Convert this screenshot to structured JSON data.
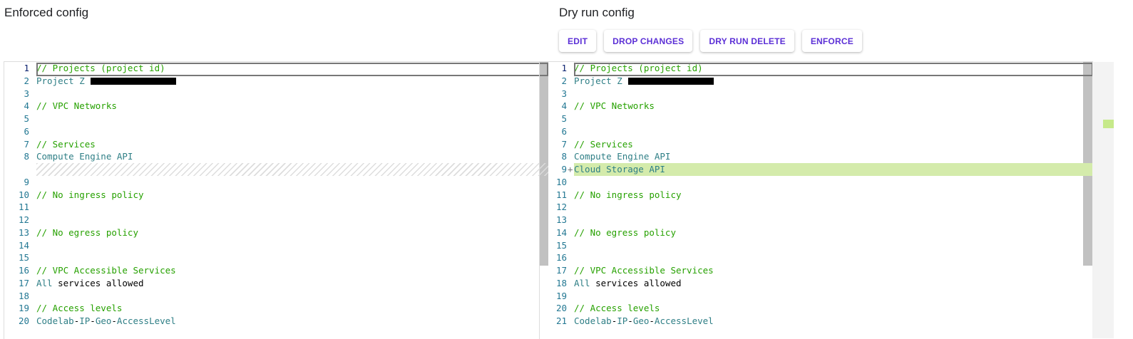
{
  "left": {
    "title": "Enforced config",
    "lines": [
      {
        "n": "1",
        "tokens": [
          {
            "t": "// Projects (project id)",
            "c": "c"
          }
        ],
        "cur": true
      },
      {
        "n": "2",
        "tokens": [
          {
            "t": "Project Z",
            "c": "t"
          }
        ],
        "redacted": true
      },
      {
        "n": "3",
        "tokens": []
      },
      {
        "n": "4",
        "tokens": [
          {
            "t": "// VPC Networks",
            "c": "c"
          }
        ]
      },
      {
        "n": "5",
        "tokens": []
      },
      {
        "n": "6",
        "tokens": []
      },
      {
        "n": "7",
        "tokens": [
          {
            "t": "// Services",
            "c": "c"
          }
        ]
      },
      {
        "n": "8",
        "tokens": [
          {
            "t": "Compute Engine API",
            "c": "t"
          }
        ]
      },
      {
        "n": "",
        "tokens": [],
        "hatch": true
      },
      {
        "n": "9",
        "tokens": []
      },
      {
        "n": "10",
        "tokens": [
          {
            "t": "// No ingress policy",
            "c": "c"
          }
        ]
      },
      {
        "n": "11",
        "tokens": []
      },
      {
        "n": "12",
        "tokens": []
      },
      {
        "n": "13",
        "tokens": [
          {
            "t": "// No egress policy",
            "c": "c"
          }
        ]
      },
      {
        "n": "14",
        "tokens": []
      },
      {
        "n": "15",
        "tokens": []
      },
      {
        "n": "16",
        "tokens": [
          {
            "t": "// VPC Accessible Services",
            "c": "c"
          }
        ]
      },
      {
        "n": "17",
        "tokens": [
          {
            "t": "All",
            "c": "t"
          },
          {
            "t": " services allowed",
            "c": "p"
          }
        ]
      },
      {
        "n": "18",
        "tokens": []
      },
      {
        "n": "19",
        "tokens": [
          {
            "t": "// Access levels",
            "c": "c"
          }
        ]
      },
      {
        "n": "20",
        "tokens": [
          {
            "t": "Codelab",
            "c": "t"
          },
          {
            "t": "-",
            "c": "p"
          },
          {
            "t": "IP",
            "c": "t"
          },
          {
            "t": "-",
            "c": "p"
          },
          {
            "t": "Geo",
            "c": "t"
          },
          {
            "t": "-",
            "c": "p"
          },
          {
            "t": "AccessLevel",
            "c": "t"
          }
        ]
      }
    ]
  },
  "right": {
    "title": "Dry run config",
    "buttons": [
      "EDIT",
      "DROP CHANGES",
      "DRY RUN DELETE",
      "ENFORCE"
    ],
    "lines": [
      {
        "n": "1",
        "tokens": [
          {
            "t": "// Projects (project id)",
            "c": "c"
          }
        ],
        "cur": true
      },
      {
        "n": "2",
        "tokens": [
          {
            "t": "Project Z",
            "c": "t"
          }
        ],
        "redacted": true
      },
      {
        "n": "3",
        "tokens": []
      },
      {
        "n": "4",
        "tokens": [
          {
            "t": "// VPC Networks",
            "c": "c"
          }
        ]
      },
      {
        "n": "5",
        "tokens": []
      },
      {
        "n": "6",
        "tokens": []
      },
      {
        "n": "7",
        "tokens": [
          {
            "t": "// Services",
            "c": "c"
          }
        ]
      },
      {
        "n": "8",
        "tokens": [
          {
            "t": "Compute Engine API",
            "c": "t"
          }
        ]
      },
      {
        "n": "9",
        "tokens": [
          {
            "t": "Cloud Storage API",
            "c": "t"
          }
        ],
        "added": true,
        "marker": "+"
      },
      {
        "n": "10",
        "tokens": []
      },
      {
        "n": "11",
        "tokens": [
          {
            "t": "// No ingress policy",
            "c": "c"
          }
        ]
      },
      {
        "n": "12",
        "tokens": []
      },
      {
        "n": "13",
        "tokens": []
      },
      {
        "n": "14",
        "tokens": [
          {
            "t": "// No egress policy",
            "c": "c"
          }
        ]
      },
      {
        "n": "15",
        "tokens": []
      },
      {
        "n": "16",
        "tokens": []
      },
      {
        "n": "17",
        "tokens": [
          {
            "t": "// VPC Accessible Services",
            "c": "c"
          }
        ]
      },
      {
        "n": "18",
        "tokens": [
          {
            "t": "All",
            "c": "t"
          },
          {
            "t": " services allowed",
            "c": "p"
          }
        ]
      },
      {
        "n": "19",
        "tokens": []
      },
      {
        "n": "20",
        "tokens": [
          {
            "t": "// Access levels",
            "c": "c"
          }
        ]
      },
      {
        "n": "21",
        "tokens": [
          {
            "t": "Codelab",
            "c": "t"
          },
          {
            "t": "-",
            "c": "p"
          },
          {
            "t": "IP",
            "c": "t"
          },
          {
            "t": "-",
            "c": "p"
          },
          {
            "t": "Geo",
            "c": "t"
          },
          {
            "t": "-",
            "c": "p"
          },
          {
            "t": "AccessLevel",
            "c": "t"
          }
        ]
      }
    ]
  }
}
